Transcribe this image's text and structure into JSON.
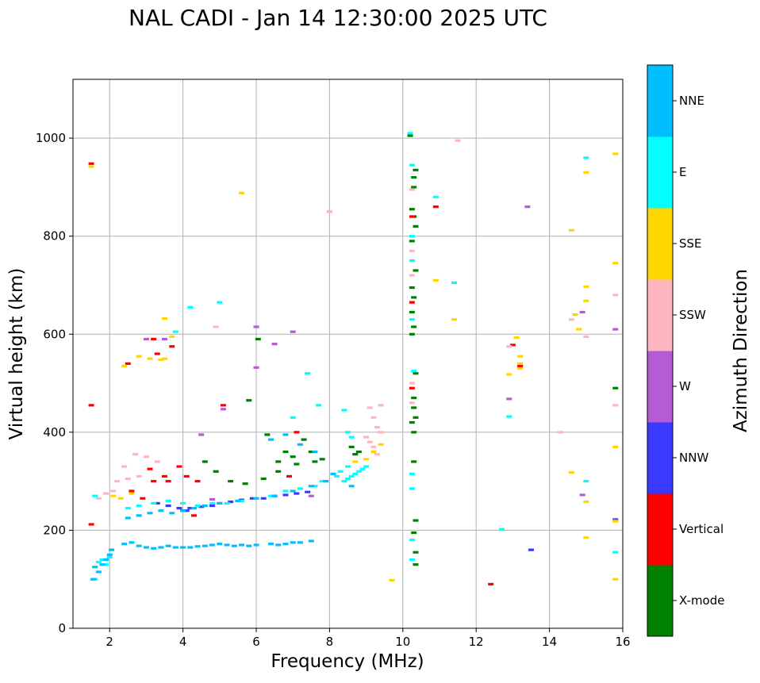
{
  "chart_data": {
    "type": "scatter",
    "title": "NAL CADI - Jan 14 12:30:00 2025 UTC",
    "xlabel": "Frequency (MHz)",
    "ylabel": "Virtual height (km)",
    "xlim": [
      1,
      16
    ],
    "ylim": [
      0,
      1120
    ],
    "xticks": [
      2,
      4,
      6,
      8,
      10,
      12,
      14,
      16
    ],
    "yticks": [
      0,
      200,
      400,
      600,
      800,
      1000
    ],
    "grid": true,
    "colorbar": {
      "label": "Azimuth Direction",
      "position": "right",
      "categories": [
        {
          "name": "X-mode",
          "color": "#008000"
        },
        {
          "name": "Vertical",
          "color": "#ff0000"
        },
        {
          "name": "NNW",
          "color": "#3a3aff"
        },
        {
          "name": "W",
          "color": "#b35cd6"
        },
        {
          "name": "SSW",
          "color": "#ffb6c1"
        },
        {
          "name": "SSE",
          "color": "#ffd700"
        },
        {
          "name": "E",
          "color": "#00ffff"
        },
        {
          "name": "NNE",
          "color": "#00bfff"
        }
      ]
    },
    "series": [
      {
        "name": "X-mode",
        "color": "#008000",
        "points": [
          [
            5.8,
            465
          ],
          [
            6.05,
            590
          ],
          [
            6.3,
            395
          ],
          [
            6.6,
            340
          ],
          [
            6.8,
            360
          ],
          [
            7.0,
            350
          ],
          [
            7.3,
            385
          ],
          [
            7.5,
            360
          ],
          [
            7.6,
            340
          ],
          [
            8.6,
            370
          ],
          [
            8.7,
            355
          ],
          [
            8.8,
            360
          ],
          [
            10.2,
            1005
          ],
          [
            10.35,
            935
          ],
          [
            10.3,
            920
          ],
          [
            10.3,
            900
          ],
          [
            10.25,
            855
          ],
          [
            10.3,
            840
          ],
          [
            10.35,
            820
          ],
          [
            10.25,
            790
          ],
          [
            10.35,
            730
          ],
          [
            10.25,
            695
          ],
          [
            10.3,
            675
          ],
          [
            10.25,
            645
          ],
          [
            10.3,
            615
          ],
          [
            10.25,
            600
          ],
          [
            10.35,
            520
          ],
          [
            10.3,
            470
          ],
          [
            10.3,
            450
          ],
          [
            10.35,
            430
          ],
          [
            10.25,
            420
          ],
          [
            10.3,
            400
          ],
          [
            10.3,
            340
          ],
          [
            10.35,
            220
          ],
          [
            10.3,
            195
          ],
          [
            10.35,
            155
          ],
          [
            10.35,
            130
          ],
          [
            15.8,
            490
          ],
          [
            4.6,
            340
          ],
          [
            4.9,
            320
          ],
          [
            5.3,
            300
          ],
          [
            5.7,
            295
          ],
          [
            6.2,
            305
          ],
          [
            6.6,
            320
          ],
          [
            7.1,
            335
          ],
          [
            7.8,
            345
          ]
        ]
      },
      {
        "name": "Vertical",
        "color": "#ff0000",
        "points": [
          [
            1.5,
            948
          ],
          [
            1.5,
            455
          ],
          [
            1.5,
            212
          ],
          [
            3.2,
            590
          ],
          [
            3.3,
            560
          ],
          [
            3.7,
            575
          ],
          [
            2.5,
            540
          ],
          [
            3.1,
            325
          ],
          [
            3.6,
            300
          ],
          [
            3.9,
            330
          ],
          [
            4.1,
            310
          ],
          [
            4.4,
            300
          ],
          [
            2.6,
            280
          ],
          [
            2.9,
            265
          ],
          [
            3.2,
            300
          ],
          [
            3.5,
            310
          ],
          [
            4.0,
            240
          ],
          [
            4.3,
            230
          ],
          [
            5.1,
            455
          ],
          [
            7.1,
            400
          ],
          [
            6.9,
            310
          ],
          [
            10.25,
            665
          ],
          [
            10.25,
            490
          ],
          [
            10.9,
            860
          ],
          [
            12.4,
            90
          ],
          [
            13.0,
            578
          ],
          [
            13.2,
            535
          ],
          [
            10.25,
            840
          ]
        ]
      },
      {
        "name": "NNW",
        "color": "#3a3aff",
        "points": [
          [
            4.2,
            245
          ],
          [
            4.5,
            248
          ],
          [
            4.8,
            250
          ],
          [
            5.0,
            255
          ],
          [
            5.3,
            258
          ],
          [
            5.6,
            262
          ],
          [
            5.9,
            265
          ],
          [
            6.2,
            265
          ],
          [
            6.5,
            270
          ],
          [
            6.8,
            272
          ],
          [
            7.1,
            275
          ],
          [
            7.4,
            278
          ],
          [
            3.3,
            255
          ],
          [
            3.6,
            250
          ],
          [
            3.9,
            245
          ],
          [
            4.1,
            240
          ],
          [
            13.5,
            160
          ],
          [
            15.8,
            222
          ]
        ]
      },
      {
        "name": "W",
        "color": "#b35cd6",
        "points": [
          [
            3.0,
            590
          ],
          [
            3.5,
            590
          ],
          [
            4.5,
            395
          ],
          [
            5.1,
            447
          ],
          [
            6.0,
            615
          ],
          [
            6.0,
            532
          ],
          [
            6.5,
            580
          ],
          [
            7.0,
            605
          ],
          [
            7.5,
            270
          ],
          [
            8.0,
            850
          ],
          [
            13.4,
            860
          ],
          [
            12.9,
            468
          ],
          [
            14.9,
            645
          ],
          [
            14.9,
            272
          ],
          [
            15.8,
            610
          ],
          [
            15.8,
            220
          ],
          [
            4.8,
            263
          ]
        ]
      },
      {
        "name": "SSW",
        "color": "#ffb6c1",
        "points": [
          [
            9.1,
            450
          ],
          [
            9.2,
            430
          ],
          [
            9.3,
            410
          ],
          [
            9.4,
            400
          ],
          [
            9.0,
            390
          ],
          [
            9.1,
            380
          ],
          [
            9.2,
            370
          ],
          [
            9.3,
            355
          ],
          [
            9.4,
            455
          ],
          [
            2.4,
            330
          ],
          [
            2.7,
            355
          ],
          [
            3.0,
            350
          ],
          [
            3.3,
            340
          ],
          [
            2.2,
            300
          ],
          [
            2.5,
            305
          ],
          [
            2.8,
            310
          ],
          [
            1.7,
            265
          ],
          [
            1.9,
            275
          ],
          [
            2.1,
            280
          ],
          [
            10.25,
            895
          ],
          [
            10.25,
            770
          ],
          [
            10.25,
            720
          ],
          [
            10.25,
            500
          ],
          [
            10.25,
            460
          ],
          [
            11.5,
            995
          ],
          [
            12.9,
            575
          ],
          [
            14.6,
            630
          ],
          [
            15.0,
            595
          ],
          [
            15.8,
            680
          ],
          [
            15.8,
            455
          ],
          [
            14.3,
            400
          ],
          [
            4.9,
            615
          ],
          [
            8.0,
            850
          ]
        ]
      },
      {
        "name": "SSE",
        "color": "#ffd700",
        "points": [
          [
            5.6,
            888
          ],
          [
            3.5,
            632
          ],
          [
            3.7,
            595
          ],
          [
            3.4,
            548
          ],
          [
            2.4,
            535
          ],
          [
            2.8,
            555
          ],
          [
            3.1,
            550
          ],
          [
            2.1,
            270
          ],
          [
            2.3,
            265
          ],
          [
            2.6,
            275
          ],
          [
            9.0,
            345
          ],
          [
            9.2,
            360
          ],
          [
            9.4,
            375
          ],
          [
            8.7,
            340
          ],
          [
            1.5,
            942
          ],
          [
            10.9,
            710
          ],
          [
            11.4,
            630
          ],
          [
            12.9,
            518
          ],
          [
            13.1,
            593
          ],
          [
            13.2,
            555
          ],
          [
            13.2,
            540
          ],
          [
            13.2,
            530
          ],
          [
            14.6,
            812
          ],
          [
            14.7,
            640
          ],
          [
            14.8,
            610
          ],
          [
            15.0,
            697
          ],
          [
            15.0,
            668
          ],
          [
            15.0,
            930
          ],
          [
            15.0,
            258
          ],
          [
            15.0,
            185
          ],
          [
            14.6,
            318
          ],
          [
            15.8,
            968
          ],
          [
            15.8,
            745
          ],
          [
            15.8,
            370
          ],
          [
            15.8,
            218
          ],
          [
            15.8,
            100
          ],
          [
            9.7,
            98
          ],
          [
            3.5,
            550
          ]
        ]
      },
      {
        "name": "E",
        "color": "#00ffff",
        "points": [
          [
            8.4,
            300
          ],
          [
            8.5,
            305
          ],
          [
            8.6,
            310
          ],
          [
            8.7,
            315
          ],
          [
            8.8,
            320
          ],
          [
            8.9,
            325
          ],
          [
            9.0,
            330
          ],
          [
            8.2,
            310
          ],
          [
            8.3,
            320
          ],
          [
            8.5,
            330
          ],
          [
            7.6,
            290
          ],
          [
            7.8,
            300
          ],
          [
            7.2,
            285
          ],
          [
            6.8,
            280
          ],
          [
            6.4,
            270
          ],
          [
            6.0,
            265
          ],
          [
            5.6,
            260
          ],
          [
            5.2,
            255
          ],
          [
            4.8,
            255
          ],
          [
            4.4,
            250
          ],
          [
            4.0,
            255
          ],
          [
            3.6,
            260
          ],
          [
            3.2,
            255
          ],
          [
            2.8,
            250
          ],
          [
            2.5,
            245
          ],
          [
            1.6,
            270
          ],
          [
            1.7,
            135
          ],
          [
            1.8,
            140
          ],
          [
            1.9,
            130
          ],
          [
            2.0,
            145
          ],
          [
            1.6,
            100
          ],
          [
            3.8,
            605
          ],
          [
            4.2,
            655
          ],
          [
            5.0,
            665
          ],
          [
            7.0,
            430
          ],
          [
            7.4,
            520
          ],
          [
            7.7,
            455
          ],
          [
            8.4,
            445
          ],
          [
            8.5,
            400
          ],
          [
            8.6,
            390
          ],
          [
            10.2,
            1010
          ],
          [
            10.25,
            945
          ],
          [
            10.25,
            800
          ],
          [
            10.25,
            750
          ],
          [
            10.25,
            630
          ],
          [
            10.3,
            525
          ],
          [
            10.25,
            315
          ],
          [
            10.25,
            285
          ],
          [
            10.25,
            180
          ],
          [
            10.25,
            140
          ],
          [
            10.9,
            880
          ],
          [
            11.4,
            705
          ],
          [
            12.7,
            202
          ],
          [
            12.9,
            432
          ],
          [
            15.0,
            960
          ],
          [
            15.0,
            300
          ],
          [
            15.8,
            155
          ]
        ]
      },
      {
        "name": "NNE",
        "color": "#00bfff",
        "points": [
          [
            2.4,
            172
          ],
          [
            2.6,
            175
          ],
          [
            2.8,
            168
          ],
          [
            3.0,
            165
          ],
          [
            3.2,
            163
          ],
          [
            3.4,
            165
          ],
          [
            3.6,
            168
          ],
          [
            3.8,
            165
          ],
          [
            4.0,
            165
          ],
          [
            4.2,
            165
          ],
          [
            4.4,
            167
          ],
          [
            4.6,
            168
          ],
          [
            4.8,
            170
          ],
          [
            5.0,
            172
          ],
          [
            5.2,
            170
          ],
          [
            5.4,
            168
          ],
          [
            5.6,
            170
          ],
          [
            5.8,
            168
          ],
          [
            6.0,
            170
          ],
          [
            6.4,
            172
          ],
          [
            6.6,
            170
          ],
          [
            6.8,
            172
          ],
          [
            7.0,
            175
          ],
          [
            7.2,
            175
          ],
          [
            7.5,
            178
          ],
          [
            1.6,
            125
          ],
          [
            1.7,
            115
          ],
          [
            1.8,
            130
          ],
          [
            1.9,
            140
          ],
          [
            2.0,
            150
          ],
          [
            2.05,
            160
          ],
          [
            1.55,
            100
          ],
          [
            2.5,
            225
          ],
          [
            2.8,
            230
          ],
          [
            3.1,
            235
          ],
          [
            3.4,
            240
          ],
          [
            3.7,
            235
          ],
          [
            4.0,
            240
          ],
          [
            4.3,
            245
          ],
          [
            4.6,
            250
          ],
          [
            5.0,
            255
          ],
          [
            5.5,
            260
          ],
          [
            6.0,
            265
          ],
          [
            6.5,
            270
          ],
          [
            7.0,
            280
          ],
          [
            7.5,
            290
          ],
          [
            7.9,
            300
          ],
          [
            6.4,
            385
          ],
          [
            6.8,
            395
          ],
          [
            7.2,
            375
          ],
          [
            7.6,
            360
          ],
          [
            8.1,
            315
          ],
          [
            8.6,
            290
          ]
        ]
      }
    ]
  }
}
